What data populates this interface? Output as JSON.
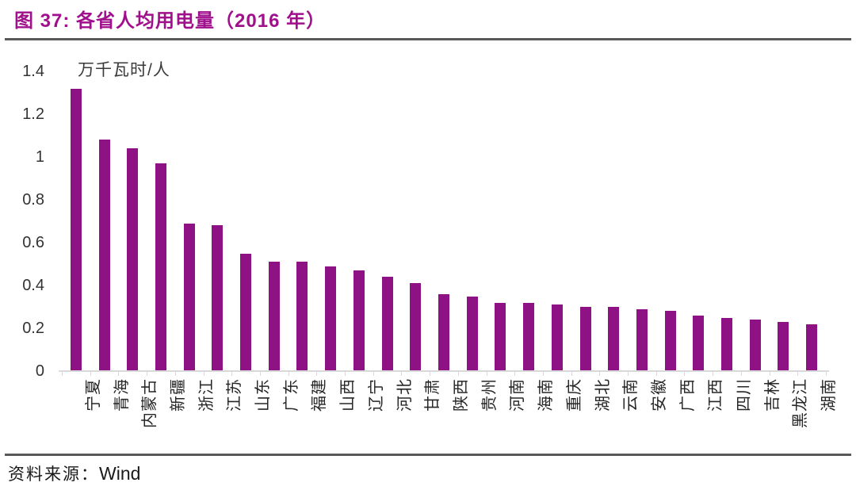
{
  "title": "图 37:  各省人均用电量（2016 年）",
  "source": {
    "label": "资料来源：",
    "value": "Wind"
  },
  "colors": {
    "bar": "#8E1284",
    "title": "#A0108C",
    "rule": "#58595B",
    "axis": "#D9D9D9"
  },
  "chart_data": {
    "type": "bar",
    "title": "图 37: 各省人均用电量（2016 年）",
    "unit_label": "万千瓦时/人",
    "xlabel": "",
    "ylabel": "万千瓦时/人",
    "ylim": [
      0,
      1.4
    ],
    "ytick_labels": [
      "0",
      "0.2",
      "0.4",
      "0.6",
      "0.8",
      "1",
      "1.2",
      "1.4"
    ],
    "grid": false,
    "legend": "none",
    "categories": [
      "宁夏",
      "青海",
      "内蒙古",
      "新疆",
      "浙江",
      "江苏",
      "山东",
      "广东",
      "福建",
      "山西",
      "辽宁",
      "河北",
      "甘肃",
      "陕西",
      "贵州",
      "河南",
      "海南",
      "重庆",
      "湖北",
      "云南",
      "安徽",
      "广西",
      "江西",
      "四川",
      "吉林",
      "黑龙江",
      "湖南"
    ],
    "values": [
      1.32,
      1.08,
      1.04,
      0.97,
      0.69,
      0.68,
      0.55,
      0.51,
      0.51,
      0.49,
      0.47,
      0.44,
      0.41,
      0.36,
      0.35,
      0.32,
      0.32,
      0.31,
      0.3,
      0.3,
      0.29,
      0.28,
      0.26,
      0.25,
      0.24,
      0.23,
      0.22
    ],
    "source_text": "资料来源：Wind"
  }
}
